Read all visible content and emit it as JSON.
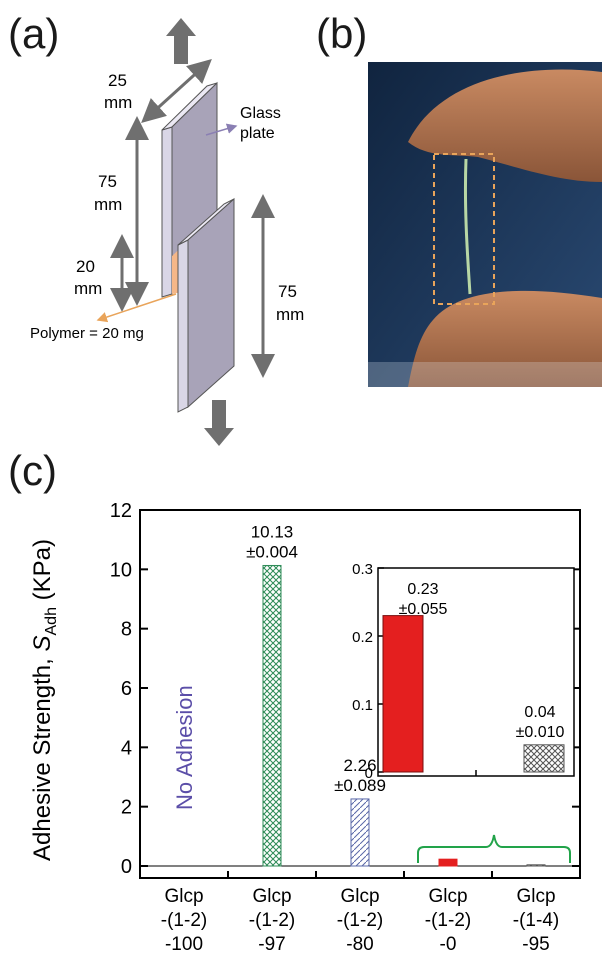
{
  "panels": {
    "a": "(a)",
    "b": "(b)",
    "c": "(c)"
  },
  "schematic": {
    "width_value": "25",
    "width_unit": "mm",
    "glass_label_1": "Glass",
    "glass_label_2": "plate",
    "height1_value": "75",
    "height1_unit": "mm",
    "overlap_value": "20",
    "overlap_unit": "mm",
    "height2_value": "75",
    "height2_unit": "mm",
    "polymer_label": "Polymer = 20 mg"
  },
  "colors": {
    "plate": "#a8a3b8",
    "plate_edge": "#d9d6e6",
    "polymer": "#f5b788",
    "arrow": "#6f6f6f",
    "glass_pointer": "#8a7fb3",
    "dashed_box": "#e9a45a",
    "bar_green": "#2e8b57",
    "bar_blue": "#5a68a8",
    "bar_red": "#e41f1f",
    "bar_gray": "#555555",
    "bracket": "#22a34a",
    "no_adhesion": "#5b4ea8"
  },
  "chart_data": {
    "type": "bar",
    "ylabel": "Adhesive Strength, S_Adh (KPa)",
    "ylim": [
      0,
      12
    ],
    "yticks": [
      "0",
      "2",
      "4",
      "6",
      "8",
      "10",
      "12"
    ],
    "categories": [
      [
        "Glcp",
        "-(1-2)",
        "-100"
      ],
      [
        "Glcp",
        "-(1-2)",
        "-97"
      ],
      [
        "Glcp",
        "-(1-2)",
        "-80"
      ],
      [
        "Glcp",
        "-(1-2)",
        "-0"
      ],
      [
        "Glcp",
        "-(1-4)",
        "-95"
      ]
    ],
    "values": [
      0,
      10.13,
      2.26,
      0.23,
      0.04
    ],
    "data_labels": [
      null,
      [
        "10.13",
        "±0.004"
      ],
      [
        "2.26",
        "±0.089"
      ],
      null,
      null
    ],
    "annotation": "No Adhesion",
    "inset": {
      "ylim": [
        0,
        0.3
      ],
      "yticks": [
        "0",
        "0.1",
        "0.2",
        "0.3"
      ],
      "values": [
        0.23,
        0.04
      ],
      "data_labels": [
        [
          "0.23",
          "±0.055"
        ],
        [
          "0.04",
          "±0.010"
        ]
      ]
    }
  }
}
